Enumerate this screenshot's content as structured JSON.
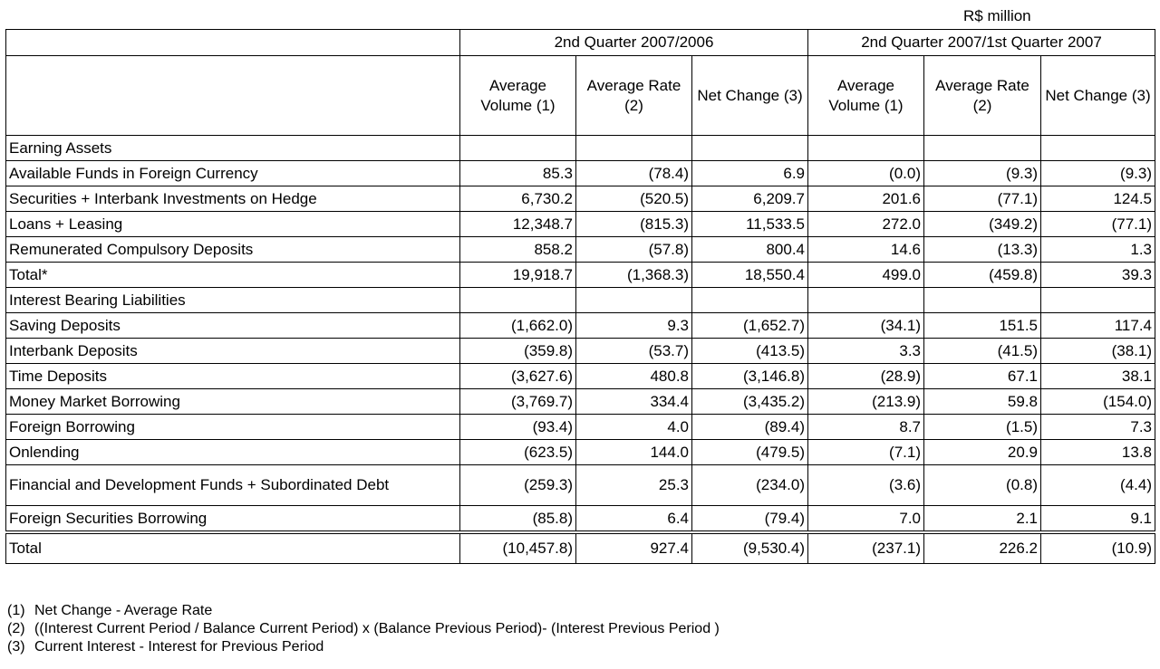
{
  "unit": "R$  million",
  "header": {
    "group1": "2nd Quarter 2007/2006",
    "group2": "2nd Quarter 2007/1st Quarter 2007",
    "columns": [
      "Average Volume  (1)",
      "Average Rate (2)",
      "Net Change (3)",
      "Average Volume  (1)",
      "Average Rate (2)",
      "Net Change (3)"
    ]
  },
  "sections": {
    "assets_title": "Earning Assets",
    "liabilities_title": "Interest Bearing Liabilities"
  },
  "assets_rows": [
    {
      "label": "Available Funds in Foreign Currency",
      "values": [
        "85.3",
        "(78.4)",
        "6.9",
        "(0.0)",
        "(9.3)",
        "(9.3)"
      ]
    },
    {
      "label": "Securities + Interbank Investments on Hedge",
      "values": [
        "6,730.2",
        "(520.5)",
        "6,209.7",
        "201.6",
        "(77.1)",
        "124.5"
      ]
    },
    {
      "label": "Loans + Leasing",
      "values": [
        "12,348.7",
        "(815.3)",
        "11,533.5",
        "272.0",
        "(349.2)",
        "(77.1)"
      ]
    },
    {
      "label": "Remunerated Compulsory Deposits",
      "values": [
        "858.2",
        "(57.8)",
        "800.4",
        "14.6",
        "(13.3)",
        "1.3"
      ]
    },
    {
      "label": " Total*",
      "values": [
        "19,918.7",
        "(1,368.3)",
        "18,550.4",
        "499.0",
        "(459.8)",
        "39.3"
      ]
    }
  ],
  "liability_rows": [
    {
      "label": "Saving Deposits",
      "values": [
        "(1,662.0)",
        "9.3",
        "(1,652.7)",
        "(34.1)",
        "151.5",
        "117.4"
      ]
    },
    {
      "label": "Interbank Deposits",
      "values": [
        "(359.8)",
        "(53.7)",
        "(413.5)",
        "3.3",
        "(41.5)",
        "(38.1)"
      ]
    },
    {
      "label": "Time Deposits",
      "values": [
        "(3,627.6)",
        "480.8",
        "(3,146.8)",
        "(28.9)",
        "67.1",
        "38.1"
      ]
    },
    {
      "label": "Money Market Borrowing",
      "values": [
        "(3,769.7)",
        "334.4",
        "(3,435.2)",
        "(213.9)",
        "59.8",
        "(154.0)"
      ]
    },
    {
      "label": "Foreign Borrowing",
      "values": [
        "(93.4)",
        "4.0",
        "(89.4)",
        "8.7",
        "(1.5)",
        "7.3"
      ]
    },
    {
      "label": "Onlending",
      "values": [
        "(623.5)",
        "144.0",
        "(479.5)",
        "(7.1)",
        "20.9",
        "13.8"
      ]
    },
    {
      "label": "Financial and Development Funds + Subordinated Debt",
      "values": [
        "(259.3)",
        "25.3",
        "(234.0)",
        "(3.6)",
        "(0.8)",
        "(4.4)"
      ]
    },
    {
      "label": "Foreign Securities Borrowing",
      "values": [
        "(85.8)",
        "6.4",
        "(79.4)",
        "7.0",
        "2.1",
        "9.1"
      ]
    }
  ],
  "total_row": {
    "label": "Total",
    "values": [
      "(10,457.8)",
      "927.4",
      "(9,530.4)",
      "(237.1)",
      "226.2",
      "(10.9)"
    ]
  },
  "notes": [
    {
      "num": "(1)",
      "text": "Net Change - Average Rate"
    },
    {
      "num": "(2)",
      "text": "((Interest Current Period / Balance Current Period) x (Balance Previous Period)- (Interest Previous Period )"
    },
    {
      "num": "(3)",
      "text": "Current Interest - Interest for Previous Period"
    }
  ]
}
